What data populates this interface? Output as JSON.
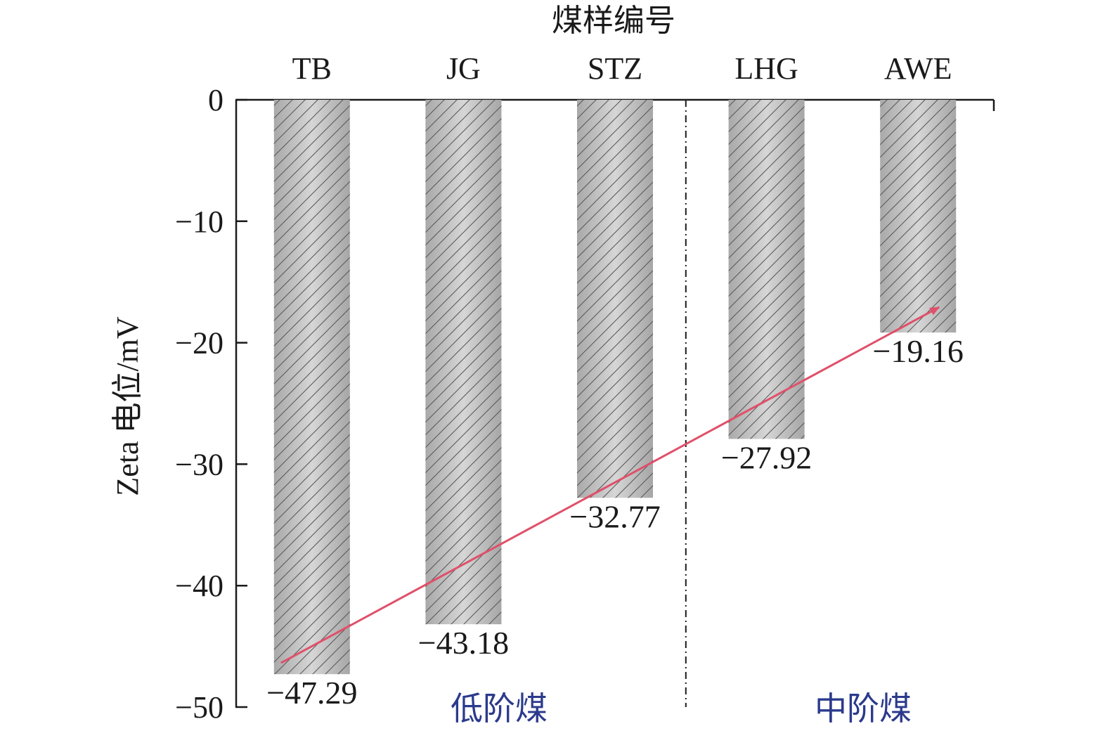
{
  "chart_data": {
    "type": "bar",
    "title": "",
    "xlabel": "煤样编号",
    "ylabel": "Zeta 电位/mV",
    "categories": [
      "TB",
      "JG",
      "STZ",
      "LHG",
      "AWE"
    ],
    "values": [
      -47.29,
      -43.18,
      -32.77,
      -27.92,
      -19.16
    ],
    "value_labels": [
      "−47.29",
      "−43.18",
      "−32.77",
      "−27.92",
      "−19.16"
    ],
    "ylim": [
      -50,
      0
    ],
    "yticks": [
      0,
      -10,
      -20,
      -30,
      -40,
      -50
    ],
    "ytick_labels": [
      "0",
      "−10",
      "−20",
      "−30",
      "−40",
      "−50"
    ],
    "x_axis_position": "top",
    "grid": false,
    "legend": "none",
    "bar_fill": "#c7c7c7",
    "bar_pattern": "diagonal-hatch",
    "groups": [
      {
        "label": "低阶煤",
        "categories": [
          "TB",
          "JG",
          "STZ"
        ],
        "color": "#2b3a8c"
      },
      {
        "label": "中阶煤",
        "categories": [
          "LHG",
          "AWE"
        ],
        "color": "#2b3a8c"
      }
    ],
    "group_divider": "dash-dot vertical line between STZ and LHG",
    "trend_arrow": {
      "from": "TB",
      "to": "AWE",
      "color": "#e0506a"
    }
  }
}
